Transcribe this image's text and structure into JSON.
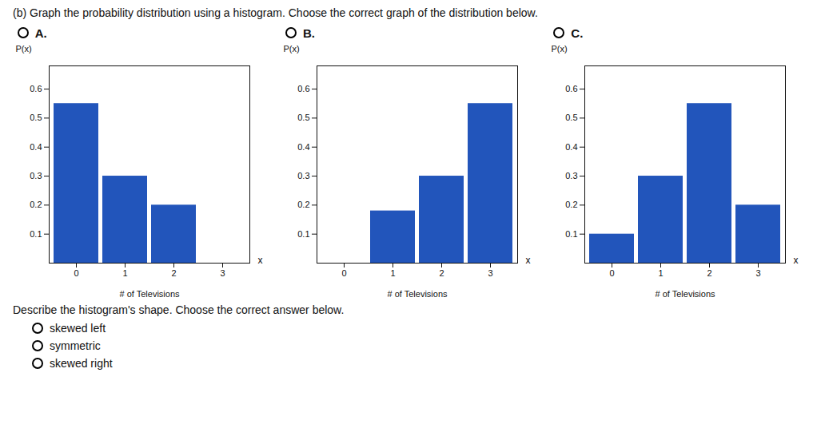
{
  "title": "(b) Graph the probability distribution using a histogram. Choose the correct graph of the distribution below.",
  "annotations": [
    "Describe the histogram's shape. Choose the correct answer below.",
    "skewed left",
    "symmetric",
    "skewed right"
  ],
  "chart_data": [
    {
      "type": "bar",
      "title": "A.",
      "categories": [
        0,
        1,
        2,
        3
      ],
      "values": [
        0.55,
        0.3,
        0.2,
        0.0
      ],
      "color": "#2255bb",
      "xlabel": "# of Televisions",
      "ylabel": "P(x)",
      "ylim": [
        0,
        0.68
      ],
      "yticks": [
        0.1,
        0.2,
        0.3,
        0.4,
        0.5,
        0.6
      ],
      "grid": false,
      "annotations": [
        "x"
      ]
    },
    {
      "type": "bar",
      "title": "B.",
      "categories": [
        0,
        1,
        2,
        3
      ],
      "values": [
        0.0,
        0.18,
        0.3,
        0.55
      ],
      "color": "#2255bb",
      "xlabel": "# of Televisions",
      "ylabel": "P(x)",
      "ylim": [
        0,
        0.68
      ],
      "yticks": [
        0.1,
        0.2,
        0.3,
        0.4,
        0.5,
        0.6
      ],
      "grid": false,
      "annotations": [
        "x"
      ]
    },
    {
      "type": "bar",
      "title": "C.",
      "categories": [
        0,
        1,
        2,
        3
      ],
      "values": [
        0.1,
        0.3,
        0.55,
        0.2
      ],
      "color": "#2255bb",
      "xlabel": "# of Televisions",
      "ylabel": "P(x)",
      "ylim": [
        0,
        0.68
      ],
      "yticks": [
        0.1,
        0.2,
        0.3,
        0.4,
        0.5,
        0.6
      ],
      "grid": false,
      "annotations": [
        "x"
      ]
    }
  ]
}
